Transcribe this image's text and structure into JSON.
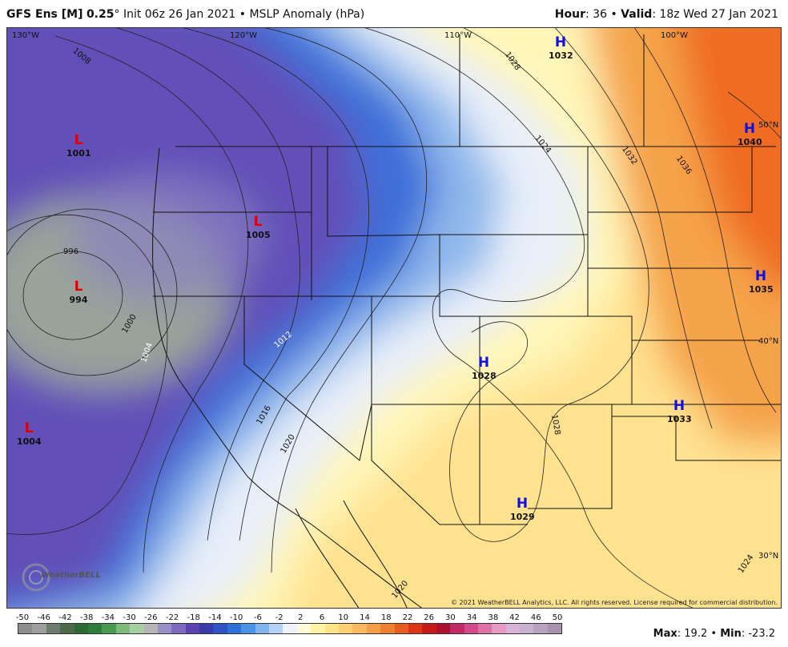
{
  "header": {
    "model": "GFS Ens [M]",
    "resolution": "0.25",
    "degree_sign": "°",
    "init_text": "Init 06z 26 Jan 2021",
    "bullet": "•",
    "product": "MSLP Anomaly (hPa)",
    "hour_label": "Hour",
    "hour_value": ": 36",
    "valid_label": "Valid",
    "valid_value": ": 18z Wed 27 Jan 2021"
  },
  "map": {
    "longitude_labels": [
      "130°W",
      "120°W",
      "110°W",
      "100°W"
    ],
    "latitude_labels": [
      "50°N",
      "40°N",
      "30°N"
    ],
    "pressure_centers": [
      {
        "type": "L",
        "value": "1001"
      },
      {
        "type": "L",
        "value": "1005"
      },
      {
        "type": "L",
        "value": "994"
      },
      {
        "type": "L",
        "value": "1004"
      },
      {
        "type": "H",
        "value": "1032"
      },
      {
        "type": "H",
        "value": "1040"
      },
      {
        "type": "H",
        "value": "1035"
      },
      {
        "type": "H",
        "value": "1028"
      },
      {
        "type": "H",
        "value": "1033"
      },
      {
        "type": "H",
        "value": "1029"
      }
    ],
    "isobar_labels": [
      "1008",
      "996",
      "1000",
      "1004",
      "1012",
      "1016",
      "1020",
      "1020",
      "1028",
      "1024",
      "1032",
      "1036",
      "1028",
      "1024"
    ],
    "copyright": "© 2021 WeatherBELL Analytics, LLC. All rights reserved. License required for commercial distribution.",
    "logo_text": "WeatherBELL",
    "colors": {
      "low_label": "#e00000",
      "high_label": "#1010e0",
      "deep_low": "#9aa39a",
      "purple": "#6a52b8",
      "blue": "#3f6fd6",
      "light_blue": "#a9c8ef",
      "near_zero": "#eef3fb",
      "pale_yellow": "#fff6b8",
      "yellow": "#ffe08c",
      "orange": "#f5a145",
      "deep_orange": "#ee6a1f"
    }
  },
  "colorbar": {
    "ticks": [
      "-50",
      "-46",
      "-42",
      "-38",
      "-34",
      "-30",
      "-26",
      "-22",
      "-18",
      "-14",
      "-10",
      "-6",
      "-2",
      "2",
      "6",
      "10",
      "14",
      "18",
      "22",
      "26",
      "30",
      "34",
      "38",
      "42",
      "46",
      "50"
    ],
    "colors": [
      "#8c8c8c",
      "#9e9e9e",
      "#6e7d6e",
      "#4a6a4a",
      "#2e6b34",
      "#2f7d3a",
      "#4a9a52",
      "#7fba7b",
      "#a8cfa2",
      "#b5b5b5",
      "#9a8fc9",
      "#7f6ac0",
      "#5a45b0",
      "#3a3aa8",
      "#2f52c4",
      "#2f6fd8",
      "#4a92e6",
      "#80b3ee",
      "#b4d2f5",
      "#eef3fb",
      "#fffbd8",
      "#fff3a6",
      "#ffe387",
      "#ffd074",
      "#fbb962",
      "#f59e49",
      "#f07f2f",
      "#e85c20",
      "#de3418",
      "#c91a1a",
      "#b01030",
      "#c22a66",
      "#d24a88",
      "#de72a8",
      "#e69bc4",
      "#d9b3d9",
      "#c8b0cf",
      "#b8a3bf",
      "#a892ae"
    ]
  },
  "stats": {
    "max_label": "Max",
    "max_value": ": 19.2",
    "separator": "•",
    "min_label": "Min",
    "min_value": ": -23.2"
  }
}
